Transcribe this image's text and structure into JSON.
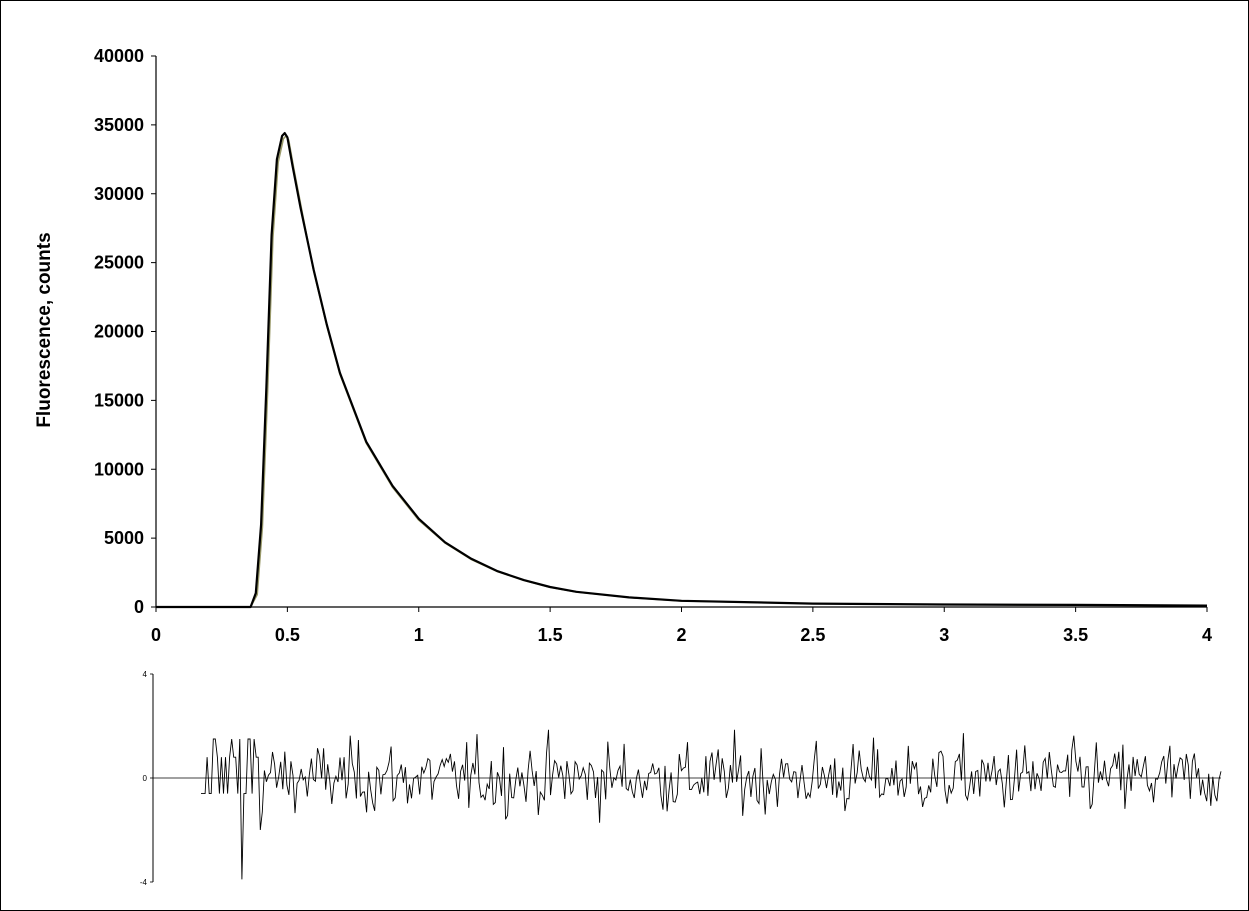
{
  "chart_data": [
    {
      "type": "line",
      "title": "",
      "xlabel": "",
      "ylabel": "Fluorescence, counts",
      "xlim": [
        0,
        4
      ],
      "ylim": [
        0,
        40000
      ],
      "x_ticks": [
        "0",
        "0.5",
        "1",
        "1.5",
        "2",
        "2.5",
        "3",
        "3.5",
        "4"
      ],
      "y_ticks": [
        "0",
        "5000",
        "10000",
        "15000",
        "20000",
        "25000",
        "30000",
        "35000",
        "40000"
      ],
      "grid": false,
      "legend": "none",
      "series": [
        {
          "line_color": "#000000",
          "x": [
            0,
            0.3,
            0.36,
            0.38,
            0.4,
            0.42,
            0.44,
            0.46,
            0.48,
            0.49,
            0.5,
            0.52,
            0.55,
            0.6,
            0.65,
            0.7,
            0.8,
            0.9,
            1.0,
            1.1,
            1.2,
            1.3,
            1.4,
            1.5,
            1.6,
            1.8,
            2.0,
            2.5,
            3.0,
            3.5,
            4.0
          ],
          "y": [
            0,
            0,
            0,
            1000,
            6000,
            16000,
            27000,
            32500,
            34200,
            34400,
            34100,
            32000,
            29000,
            24500,
            20500,
            17000,
            12000,
            8800,
            6400,
            4700,
            3500,
            2600,
            1950,
            1450,
            1100,
            700,
            450,
            250,
            180,
            150,
            100
          ]
        },
        {
          "line_color": "#9a9a6a",
          "x": [
            0,
            0.3,
            0.36,
            0.385,
            0.405,
            0.425,
            0.445,
            0.465,
            0.485,
            0.495,
            0.505,
            0.525,
            0.555,
            0.6,
            0.65,
            0.7,
            0.8,
            0.9,
            1.0,
            1.1,
            1.2,
            1.3,
            1.4,
            1.5,
            1.6,
            1.8,
            2.0,
            2.5,
            3.0,
            3.5,
            4.0
          ],
          "y": [
            0,
            0,
            0,
            900,
            5800,
            15800,
            26800,
            32300,
            34000,
            34200,
            33900,
            31800,
            28800,
            24400,
            20400,
            16900,
            11900,
            8700,
            6300,
            4650,
            3450,
            2570,
            1930,
            1430,
            1090,
            690,
            445,
            248,
            178,
            148,
            98
          ]
        }
      ]
    },
    {
      "type": "line",
      "title": "",
      "xlabel": "",
      "ylabel": "",
      "ylim": [
        -4,
        4
      ],
      "y_ticks": [
        "4",
        "0",
        "-4"
      ],
      "grid": false,
      "legend": "none",
      "description_of_values": "weighted residuals, noise-like, roughly within -3 to +3",
      "series": [
        {
          "line_color": "#000000",
          "n_points": 500,
          "amplitude": 1.0
        }
      ]
    }
  ]
}
